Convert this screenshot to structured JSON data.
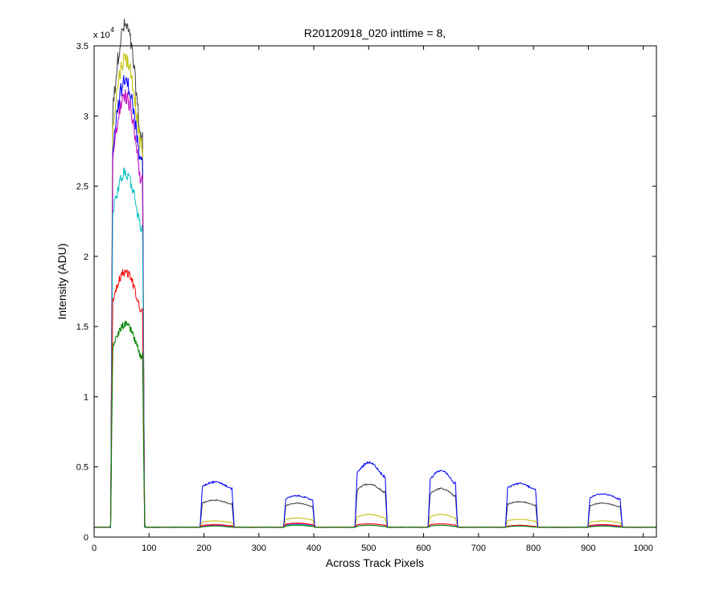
{
  "chart_data": {
    "type": "line",
    "title": "R20120918_020 inttime = 8,",
    "xlabel": "Across Track Pixels",
    "ylabel": "Intensity (ADU)",
    "exponent_label": "x 10",
    "exponent_power": "4",
    "xlim": [
      0,
      1024
    ],
    "ylim": [
      0,
      35000
    ],
    "xticks": [
      0,
      100,
      200,
      300,
      400,
      500,
      600,
      700,
      800,
      900,
      1000
    ],
    "yticks": [
      0,
      5000,
      10000,
      15000,
      20000,
      25000,
      30000,
      35000
    ],
    "ytick_labels": [
      "0",
      "0.5",
      "1",
      "1.5",
      "2",
      "2.5",
      "3",
      "3.5"
    ],
    "baseline": 700,
    "segments": [
      {
        "start": 30,
        "end": 92
      },
      {
        "start": 193,
        "end": 255
      },
      {
        "start": 345,
        "end": 402
      },
      {
        "start": 475,
        "end": 534
      },
      {
        "start": 608,
        "end": 662
      },
      {
        "start": 749,
        "end": 808
      },
      {
        "start": 899,
        "end": 962
      }
    ],
    "series": [
      {
        "color": "#404040",
        "plateaus": [
          32500,
          2500,
          2300,
          3500,
          3200,
          2400,
          2300
        ],
        "tilt": [
          0.12,
          0.05,
          0.05,
          0.08,
          0.08,
          0.05,
          0.05
        ]
      },
      {
        "color": "#bfbf00",
        "plateaus": [
          31000,
          1100,
          1300,
          1500,
          1500,
          1200,
          1100
        ],
        "tilt": [
          0.1,
          0.05,
          0.05,
          0.08,
          0.08,
          0.05,
          0.05
        ]
      },
      {
        "color": "#0000ff",
        "plateaus": [
          29500,
          3700,
          2800,
          4800,
          4300,
          3600,
          2900
        ],
        "tilt": [
          0.1,
          0.06,
          0.05,
          0.1,
          0.1,
          0.06,
          0.06
        ]
      },
      {
        "color": "#bf00bf",
        "plateaus": [
          28500,
          800,
          900,
          900,
          900,
          800,
          800
        ],
        "tilt": [
          0.1,
          0.05,
          0.05,
          0.05,
          0.05,
          0.05,
          0.05
        ]
      },
      {
        "color": "#00bfbf",
        "plateaus": [
          24000,
          750,
          850,
          800,
          800,
          750,
          750
        ],
        "tilt": [
          0.08,
          0.05,
          0.05,
          0.05,
          0.05,
          0.05,
          0.05
        ]
      },
      {
        "color": "#ff0000",
        "plateaus": [
          17500,
          850,
          950,
          900,
          900,
          800,
          850
        ],
        "tilt": [
          0.08,
          0.05,
          0.05,
          0.05,
          0.05,
          0.05,
          0.05
        ]
      },
      {
        "color": "#008000",
        "plateaus": [
          14000,
          750,
          800,
          800,
          800,
          750,
          750
        ],
        "tilt": [
          0.08,
          0.05,
          0.05,
          0.05,
          0.05,
          0.05,
          0.05
        ]
      }
    ]
  }
}
